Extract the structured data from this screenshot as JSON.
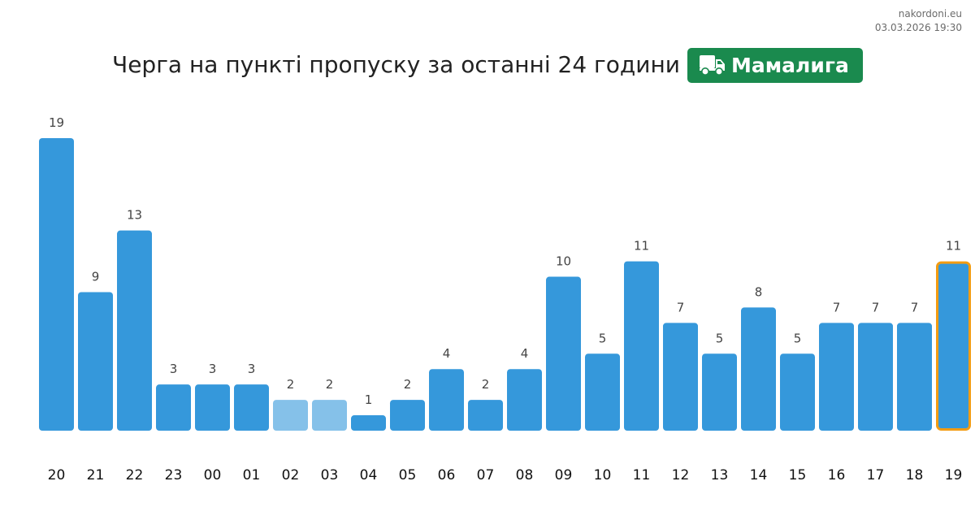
{
  "source": {
    "site": "nakordoni.eu",
    "timestamp": "03.03.2026 19:30"
  },
  "header": {
    "title": "Черга на пункті пропуску за останні 24 години",
    "checkpoint_name": "Мамалига",
    "checkpoint_icon": "truck-icon",
    "checkpoint_color": "#1a8a4e"
  },
  "colors": {
    "bar": "#3598db",
    "bar_faded": "#85c1e9",
    "highlight_border": "#f39c12",
    "value_label": "#444444",
    "axis_label": "#111111"
  },
  "chart_data": {
    "type": "bar",
    "title": "Черга на пункті пропуску за останні 24 години",
    "xlabel": "",
    "ylabel": "",
    "categories": [
      "20",
      "21",
      "22",
      "23",
      "00",
      "01",
      "02",
      "03",
      "04",
      "05",
      "06",
      "07",
      "08",
      "09",
      "10",
      "11",
      "12",
      "13",
      "14",
      "15",
      "16",
      "17",
      "18",
      "19"
    ],
    "values": [
      19,
      9,
      13,
      3,
      3,
      3,
      2,
      2,
      1,
      2,
      4,
      2,
      4,
      10,
      5,
      11,
      7,
      5,
      8,
      5,
      7,
      7,
      7,
      11
    ],
    "faded_categories": [
      "02",
      "03"
    ],
    "highlighted_category": "19",
    "ylim": [
      0,
      19
    ],
    "grid": false,
    "legend": "none"
  }
}
